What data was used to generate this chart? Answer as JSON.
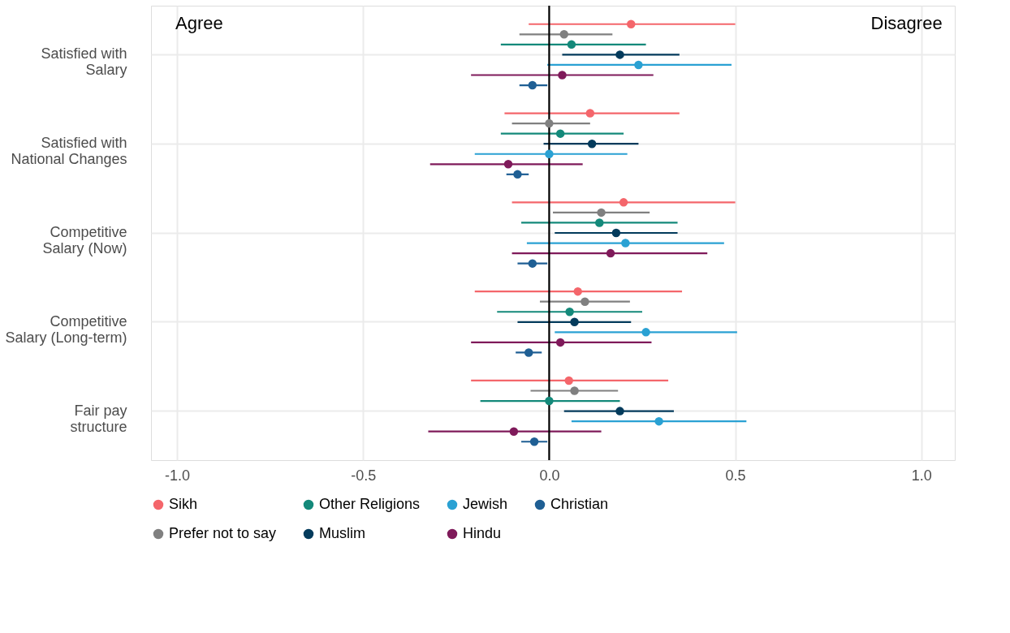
{
  "chart_data": {
    "type": "scatter",
    "orientation": "horizontal",
    "categories": [
      "Satisfied with\nSalary",
      "Satisfied with\nNational Changes",
      "Competitive\nSalary (Now)",
      "Competitive\nSalary (Long-term)",
      "Fair pay\nstructure"
    ],
    "series": [
      {
        "name": "Sikh",
        "color": "#f4666b",
        "values": [
          0.22,
          0.11,
          0.2,
          0.077,
          0.053
        ],
        "errors": [
          [
            -0.055,
            0.5
          ],
          [
            -0.12,
            0.35
          ],
          [
            -0.1,
            0.5
          ],
          [
            -0.2,
            0.357
          ],
          [
            -0.21,
            0.32
          ]
        ]
      },
      {
        "name": "Prefer not to say",
        "color": "#808080",
        "values": [
          0.04,
          0.0,
          0.14,
          0.096,
          0.068
        ],
        "errors": [
          [
            -0.08,
            0.17
          ],
          [
            -0.1,
            0.11
          ],
          [
            0.01,
            0.27
          ],
          [
            -0.025,
            0.217
          ],
          [
            -0.05,
            0.185
          ]
        ]
      },
      {
        "name": "Other Religions",
        "color": "#14897a",
        "values": [
          0.06,
          0.03,
          0.135,
          0.055,
          0.0
        ],
        "errors": [
          [
            -0.13,
            0.26
          ],
          [
            -0.13,
            0.2
          ],
          [
            -0.075,
            0.345
          ],
          [
            -0.14,
            0.25
          ],
          [
            -0.185,
            0.19
          ]
        ]
      },
      {
        "name": "Muslim",
        "color": "#043b5c",
        "values": [
          0.19,
          0.115,
          0.18,
          0.068,
          0.19
        ],
        "errors": [
          [
            0.035,
            0.35
          ],
          [
            -0.015,
            0.24
          ],
          [
            0.015,
            0.345
          ],
          [
            -0.085,
            0.22
          ],
          [
            0.04,
            0.335
          ]
        ]
      },
      {
        "name": "Jewish",
        "color": "#2aa1d3",
        "values": [
          0.24,
          0.0,
          0.205,
          0.26,
          0.295
        ],
        "errors": [
          [
            -0.005,
            0.49
          ],
          [
            -0.2,
            0.21
          ],
          [
            -0.06,
            0.47
          ],
          [
            0.015,
            0.505
          ],
          [
            0.06,
            0.53
          ]
        ]
      },
      {
        "name": "Hindu",
        "color": "#7f1a5a",
        "values": [
          0.035,
          -0.11,
          0.165,
          0.03,
          -0.095
        ],
        "errors": [
          [
            -0.21,
            0.28
          ],
          [
            -0.32,
            0.09
          ],
          [
            -0.1,
            0.425
          ],
          [
            -0.21,
            0.275
          ],
          [
            -0.325,
            0.14
          ]
        ]
      },
      {
        "name": "Christian",
        "color": "#1f5f94",
        "values": [
          -0.045,
          -0.085,
          -0.045,
          -0.055,
          -0.04
        ],
        "errors": [
          [
            -0.08,
            -0.005
          ],
          [
            -0.115,
            -0.055
          ],
          [
            -0.085,
            -0.005
          ],
          [
            -0.09,
            -0.02
          ],
          [
            -0.075,
            -0.005
          ]
        ]
      }
    ],
    "xlim": [
      -1.07,
      1.09
    ],
    "xticks": [
      {
        "value": -1,
        "label": "-1.0"
      },
      {
        "value": -0.5,
        "label": "-0.5"
      },
      {
        "value": 0,
        "label": "0.0"
      },
      {
        "value": 0.5,
        "label": "0.5"
      },
      {
        "value": 1,
        "label": "1.0"
      }
    ],
    "ref_lines": [
      {
        "axis": "x",
        "value": 0,
        "label": null,
        "color": "#000000"
      }
    ],
    "annotations": [
      "Agree",
      "Disagree"
    ],
    "grid": true,
    "legend": "bottom",
    "marker": "circle"
  }
}
